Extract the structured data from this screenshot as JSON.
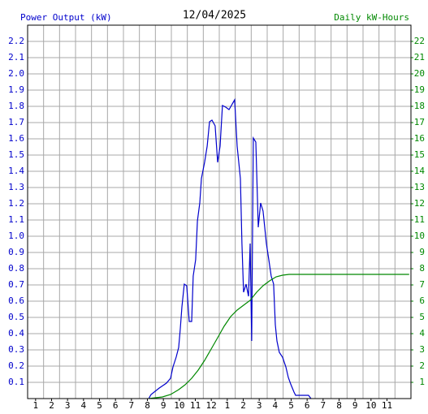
{
  "chart_data": {
    "type": "line",
    "title": "12/04/2025",
    "ylabel": "Power Output (kW)",
    "y2label": "Daily kW-Hours",
    "xlim": [
      0.5,
      24.5
    ],
    "xticks": [
      {
        "value": 1,
        "label": "1"
      },
      {
        "value": 2,
        "label": "2"
      },
      {
        "value": 3,
        "label": "3"
      },
      {
        "value": 4,
        "label": "4"
      },
      {
        "value": 5,
        "label": "5"
      },
      {
        "value": 6,
        "label": "6"
      },
      {
        "value": 7,
        "label": "7"
      },
      {
        "value": 8,
        "label": "8"
      },
      {
        "value": 9,
        "label": "9"
      },
      {
        "value": 10,
        "label": "10"
      },
      {
        "value": 11,
        "label": "11"
      },
      {
        "value": 12,
        "label": "12"
      },
      {
        "value": 13,
        "label": "1"
      },
      {
        "value": 14,
        "label": "2"
      },
      {
        "value": 15,
        "label": "3"
      },
      {
        "value": 16,
        "label": "4"
      },
      {
        "value": 17,
        "label": "5"
      },
      {
        "value": 18,
        "label": "6"
      },
      {
        "value": 19,
        "label": "7"
      },
      {
        "value": 20,
        "label": "8"
      },
      {
        "value": 21,
        "label": "9"
      },
      {
        "value": 22,
        "label": "10"
      },
      {
        "value": 23,
        "label": "11"
      }
    ],
    "ylim": [
      0,
      2.3
    ],
    "yticks": [
      0.1,
      0.2,
      0.3,
      0.4,
      0.5,
      0.6,
      0.7,
      0.8,
      0.9,
      {
        "value": 1,
        "label": "1.0"
      },
      1.1,
      1.2,
      1.3,
      1.4,
      1.5,
      1.6,
      1.7,
      1.8,
      1.9,
      {
        "value": 2,
        "label": "2.0"
      },
      2.1,
      2.2
    ],
    "y2lim": [
      0,
      23
    ],
    "y2ticks": [
      1,
      2,
      3,
      4,
      5,
      6,
      7,
      8,
      9,
      10,
      11,
      12,
      13,
      14,
      15,
      16,
      17,
      18,
      19,
      20,
      21,
      22
    ],
    "grid": true,
    "series": [
      {
        "name": "Power Output (kW)",
        "color": "#0000cc",
        "x": [
          8.08,
          8.23,
          8.74,
          9.19,
          9.45,
          9.6,
          9.8,
          9.96,
          10.06,
          10.16,
          10.31,
          10.46,
          10.62,
          10.77,
          10.87,
          11.02,
          11.13,
          11.28,
          11.38,
          11.58,
          11.74,
          11.89,
          12.04,
          12.24,
          12.4,
          12.55,
          12.7,
          12.9,
          13.11,
          13.26,
          13.46,
          13.62,
          13.82,
          13.92,
          14.02,
          14.18,
          14.33,
          14.43,
          14.53,
          14.63,
          14.79,
          14.94,
          15.09,
          15.24,
          15.45,
          15.6,
          15.75,
          15.9,
          16.01,
          16.11,
          16.26,
          16.46,
          16.67,
          16.82,
          16.97,
          17.18,
          17.28,
          18.09,
          18.24
        ],
        "values": [
          0,
          0.025,
          0.065,
          0.095,
          0.125,
          0.195,
          0.255,
          0.315,
          0.43,
          0.565,
          0.705,
          0.695,
          0.475,
          0.475,
          0.755,
          0.855,
          1.095,
          1.205,
          1.355,
          1.455,
          1.555,
          1.705,
          1.715,
          1.68,
          1.455,
          1.555,
          1.805,
          1.795,
          1.78,
          1.805,
          1.84,
          1.555,
          1.355,
          0.955,
          0.655,
          0.705,
          0.63,
          0.955,
          0.355,
          1.605,
          1.58,
          1.055,
          1.205,
          1.155,
          0.955,
          0.855,
          0.755,
          0.705,
          0.455,
          0.355,
          0.285,
          0.255,
          0.195,
          0.13,
          0.09,
          0.04,
          0.02,
          0.02,
          0
        ]
      },
      {
        "name": "Daily kW-Hours",
        "color": "#008800",
        "axis": "y2",
        "x": [
          8.08,
          8.94,
          9.45,
          9.96,
          10.36,
          10.77,
          11.18,
          11.58,
          11.99,
          12.4,
          12.8,
          13.21,
          13.62,
          14.02,
          14.43,
          14.84,
          15.24,
          15.65,
          16.06,
          16.46,
          16.87,
          17.28,
          24.39
        ],
        "values": [
          0,
          0.1,
          0.25,
          0.55,
          0.85,
          1.25,
          1.75,
          2.35,
          3.05,
          3.75,
          4.45,
          5.05,
          5.45,
          5.75,
          6.05,
          6.55,
          6.95,
          7.25,
          7.5,
          7.6,
          7.65,
          7.65,
          7.65
        ]
      }
    ]
  }
}
